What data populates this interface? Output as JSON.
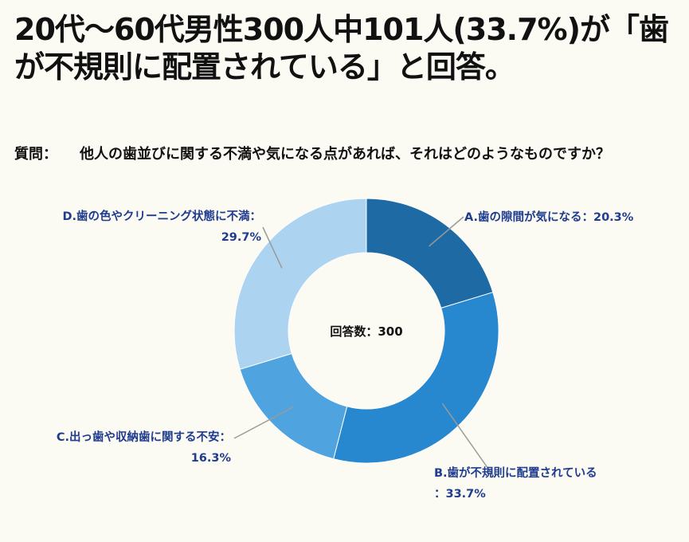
{
  "headline": "20代〜60代男性300人中101人(33.7%)が「歯が不規則に配置されている」と回答。",
  "question": {
    "label": "質問：",
    "text": "他人の歯並びに関する不満や気になる点があれば、それはどのようなものですか？"
  },
  "chart_data": {
    "type": "pie",
    "style": "donut",
    "center_label": "回答数：300",
    "slices": [
      {
        "label_line1": "A.歯の隙間が気になる：20.3%",
        "label_line2": "",
        "value": 20.3,
        "color": "#1d6aa5"
      },
      {
        "label_line1": "B.歯が不規則に配置されている",
        "label_line2": "：33.7%",
        "value": 33.7,
        "color": "#2788cf"
      },
      {
        "label_line1": "C.出っ歯や収納歯に関する不安：",
        "label_line2": "16.3%",
        "value": 16.3,
        "color": "#4fa3df"
      },
      {
        "label_line1": "D.歯の色やクリーニング状態に不満：",
        "label_line2": "29.7%",
        "value": 29.7,
        "color": "#acd4f0"
      }
    ],
    "colors": {
      "leader_line": "#9a9a9a",
      "label_text": "#1f3c8f"
    }
  }
}
